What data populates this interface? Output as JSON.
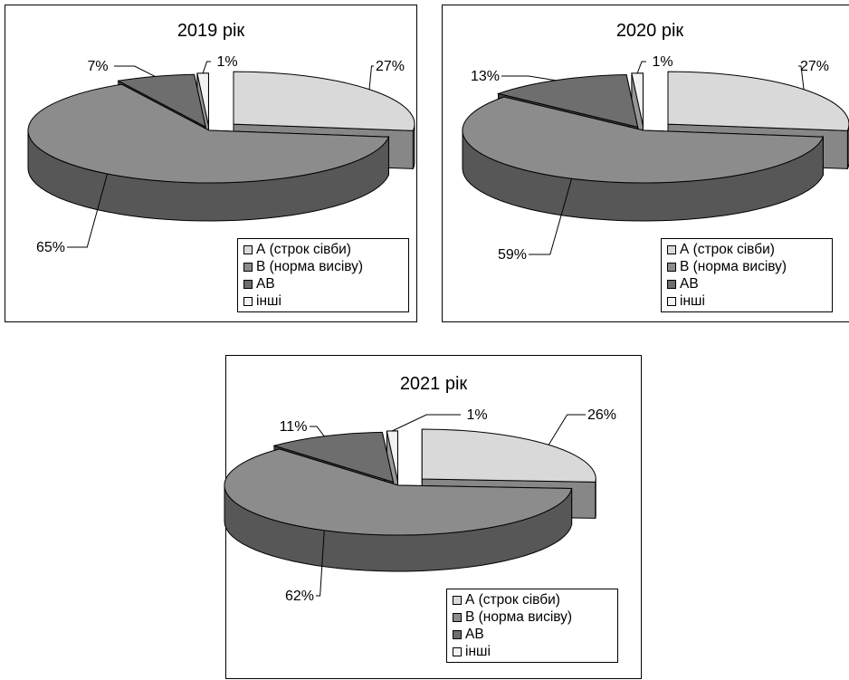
{
  "chart_data": [
    {
      "type": "pie",
      "title": "2019 рік",
      "categories": [
        "А (строк сівби)",
        "В (норма висіву)",
        "АВ",
        "інші"
      ],
      "values": [
        27,
        65,
        7,
        1
      ],
      "labels": [
        "27%",
        "65%",
        "7%",
        "1%"
      ],
      "colors": [
        "#d9d9d9",
        "#8c8c8c",
        "#6e6e6e",
        "#f2f2f2"
      ],
      "legend_position": "bottom-right",
      "style": "3d-exploded"
    },
    {
      "type": "pie",
      "title": "2020 рік",
      "categories": [
        "А (строк сівби)",
        "В (норма висіву)",
        "АВ",
        "інші"
      ],
      "values": [
        27,
        59,
        13,
        1
      ],
      "labels": [
        "27%",
        "59%",
        "13%",
        "1%"
      ],
      "colors": [
        "#d9d9d9",
        "#8c8c8c",
        "#6e6e6e",
        "#f2f2f2"
      ],
      "legend_position": "bottom-right",
      "style": "3d-exploded"
    },
    {
      "type": "pie",
      "title": "2021 рік",
      "categories": [
        "А (строк сівби)",
        "В (норма висіву)",
        "АВ",
        "інші"
      ],
      "values": [
        26,
        62,
        11,
        1
      ],
      "labels": [
        "26%",
        "62%",
        "11%",
        "1%"
      ],
      "colors": [
        "#d9d9d9",
        "#8c8c8c",
        "#6e6e6e",
        "#f2f2f2"
      ],
      "legend_position": "bottom-right",
      "style": "3d-exploded"
    }
  ]
}
